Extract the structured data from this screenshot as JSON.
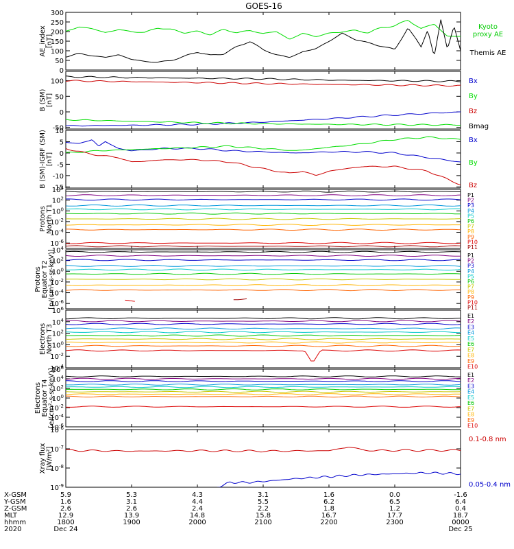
{
  "title": "GOES-16",
  "chart_data": [
    {
      "type": "line",
      "ylabel": [
        "AE_index",
        "[nT]"
      ],
      "yscale": "linear",
      "ylim": [
        0,
        300
      ],
      "yticks": [
        "0",
        "50",
        "100",
        "150",
        "200",
        "250",
        "300"
      ],
      "series": [
        {
          "name": "Kyoto proxy AE",
          "label_lines": [
            "Kyoto",
            "proxy AE"
          ],
          "color": "#00dd00",
          "x": [
            0,
            0.2,
            0.4,
            0.6,
            0.8,
            1.0,
            1.2,
            1.4,
            1.6,
            1.8,
            2.0,
            2.2,
            2.4,
            2.6,
            2.8,
            3.0,
            3.2,
            3.4,
            3.6,
            3.8,
            4.0,
            4.2,
            4.4,
            4.6,
            4.8,
            5.0,
            5.2,
            5.4,
            5.6,
            5.8,
            6.0
          ],
          "y": [
            200,
            225,
            215,
            195,
            210,
            200,
            195,
            220,
            210,
            195,
            200,
            185,
            210,
            195,
            205,
            190,
            200,
            160,
            190,
            175,
            190,
            200,
            205,
            195,
            220,
            230,
            260,
            215,
            240,
            175,
            175
          ]
        },
        {
          "name": "Themis AE",
          "label_lines": [
            "Themis AE"
          ],
          "color": "#000000",
          "x": [
            0,
            0.2,
            0.4,
            0.6,
            0.8,
            1.0,
            1.2,
            1.4,
            1.6,
            1.8,
            2.0,
            2.2,
            2.4,
            2.6,
            2.8,
            3.0,
            3.2,
            3.4,
            3.6,
            3.8,
            4.0,
            4.2,
            4.4,
            4.6,
            4.8,
            5.0,
            5.2,
            5.4,
            5.5,
            5.6,
            5.7,
            5.8,
            5.9,
            6.0
          ],
          "y": [
            70,
            85,
            75,
            65,
            80,
            55,
            45,
            40,
            50,
            70,
            95,
            75,
            85,
            120,
            150,
            105,
            80,
            65,
            95,
            110,
            150,
            190,
            160,
            140,
            125,
            105,
            220,
            120,
            210,
            70,
            260,
            110,
            230,
            100
          ]
        }
      ]
    },
    {
      "type": "line",
      "ylabel": [
        "B (SM)",
        "[nT]"
      ],
      "yscale": "linear",
      "ylim": [
        -55,
        130
      ],
      "yticks": [
        "-50",
        "0",
        "50",
        "100"
      ],
      "series": [
        {
          "name": "Bx",
          "color": "#0000cc",
          "x": [
            0,
            1,
            2,
            3,
            4,
            5,
            6
          ],
          "y": [
            -45,
            -43,
            -40,
            -33,
            -22,
            -10,
            0
          ]
        },
        {
          "name": "By",
          "color": "#00dd00",
          "x": [
            0,
            1,
            2,
            3,
            4,
            5,
            6
          ],
          "y": [
            -25,
            -30,
            -35,
            -38,
            -40,
            -41,
            -42
          ]
        },
        {
          "name": "Bz",
          "color": "#cc0000",
          "x": [
            0,
            1,
            2,
            3,
            4,
            5,
            6
          ],
          "y": [
            100,
            97,
            94,
            91,
            88,
            86,
            84
          ]
        },
        {
          "name": "Bmag",
          "color": "#000000",
          "x": [
            0,
            1,
            2,
            3,
            4,
            5,
            6
          ],
          "y": [
            113,
            110,
            108,
            106,
            102,
            100,
            98
          ]
        }
      ]
    },
    {
      "type": "line",
      "ylabel": [
        "B (SM)-IGRF (SM)",
        "[nT]"
      ],
      "yscale": "linear",
      "ylim": [
        -15.5,
        10
      ],
      "yticks": [
        "-15",
        "-10",
        "-5",
        "0",
        "5",
        "10"
      ],
      "series": [
        {
          "name": "Bx",
          "color": "#0000cc",
          "x": [
            0,
            0.2,
            0.4,
            0.5,
            0.6,
            0.8,
            1.0,
            1.5,
            2.0,
            2.5,
            3.0,
            3.5,
            4.0,
            4.5,
            5.0,
            5.5,
            6.0
          ],
          "y": [
            5,
            4,
            6,
            3,
            5,
            2,
            1,
            2,
            2,
            1,
            0.5,
            0,
            0.5,
            0.5,
            0,
            -2,
            -4
          ]
        },
        {
          "name": "By",
          "color": "#00dd00",
          "x": [
            0,
            0.5,
            1.0,
            1.5,
            2.0,
            2.5,
            3.0,
            3.5,
            4.0,
            4.5,
            5.0,
            5.5,
            6.0
          ],
          "y": [
            0,
            1,
            1.5,
            2,
            2.5,
            3,
            2,
            1,
            2.5,
            4,
            6,
            7,
            6
          ]
        },
        {
          "name": "Bz",
          "color": "#cc0000",
          "x": [
            0,
            0.3,
            0.5,
            0.8,
            1.0,
            1.5,
            2.0,
            2.5,
            3.0,
            3.2,
            3.4,
            3.6,
            3.8,
            4.0,
            4.5,
            5.0,
            5.5,
            6.0
          ],
          "y": [
            2,
            0,
            -1,
            -2,
            -4,
            -3,
            -3,
            -4,
            -7,
            -8,
            -9,
            -8,
            -10,
            -8,
            -6,
            -6,
            -8,
            -14
          ]
        }
      ]
    },
    {
      "type": "line",
      "ylabel": [
        "Protons",
        "North T1"
      ],
      "yscale": "log",
      "ylim": [
        -7,
        4
      ],
      "yticks": [
        "10^4",
        "10^2",
        "10^0",
        "10^-2",
        "10^-4",
        "10^-6"
      ],
      "series": [
        {
          "name": "P1",
          "color": "#000000",
          "log10": 3.6
        },
        {
          "name": "P2",
          "color": "#800080",
          "log10": 2.9
        },
        {
          "name": "P3",
          "color": "#0000cc",
          "log10": 2.1
        },
        {
          "name": "P4",
          "color": "#0096dc",
          "log10": 1.0
        },
        {
          "name": "P5",
          "color": "#00c8c8",
          "log10": 0.3
        },
        {
          "name": "P6",
          "color": "#00c800",
          "log10": -0.5
        },
        {
          "name": "P7",
          "color": "#c8c800",
          "log10": -1.5
        },
        {
          "name": "P8",
          "color": "#ffb400",
          "log10": -2.6
        },
        {
          "name": "P9",
          "color": "#ff6400",
          "log10": -3.5
        },
        {
          "name": "P10",
          "color": "#dc0000",
          "log10": -6.0
        },
        {
          "name": "P11",
          "color": "#a00000",
          "log10": -6.6
        }
      ]
    },
    {
      "type": "line",
      "ylabel": [
        "Protons",
        "Equator T2",
        "[p/(cm²-s-sr-keV)]"
      ],
      "yscale": "log",
      "ylim": [
        -7,
        4
      ],
      "yticks": [
        "10^4",
        "10^2",
        "10^0",
        "10^-2",
        "10^-4",
        "10^-6"
      ],
      "series": [
        {
          "name": "P1",
          "color": "#000000",
          "log10": 3.6
        },
        {
          "name": "P2",
          "color": "#800080",
          "log10": 2.9
        },
        {
          "name": "P3",
          "color": "#0000cc",
          "log10": 2.1
        },
        {
          "name": "P4",
          "color": "#0096dc",
          "log10": 1.0
        },
        {
          "name": "P5",
          "color": "#00c8c8",
          "log10": 0.3
        },
        {
          "name": "P6",
          "color": "#00c800",
          "log10": -0.5
        },
        {
          "name": "P7",
          "color": "#c8c800",
          "log10": -1.5
        },
        {
          "name": "P8",
          "color": "#ffb400",
          "log10": -2.6
        },
        {
          "name": "P9",
          "color": "#ff6400",
          "log10": -3.5
        },
        {
          "name": "P10",
          "color": "#dc0000",
          "log10": -5.5,
          "x_range": [
            0.9,
            1.05
          ]
        },
        {
          "name": "P11",
          "color": "#a00000",
          "log10": -5.2,
          "x_range": [
            2.55,
            2.75
          ]
        }
      ]
    },
    {
      "type": "line",
      "ylabel": [
        "Electrons",
        "North T3"
      ],
      "yscale": "log",
      "ylim": [
        -4,
        6
      ],
      "yticks": [
        "10^6",
        "10^4",
        "10^2",
        "10^0",
        "10^-2",
        "10^-4"
      ],
      "series": [
        {
          "name": "E1",
          "color": "#000000",
          "log10": 4.6
        },
        {
          "name": "E2",
          "color": "#800080",
          "log10": 4.1
        },
        {
          "name": "E3",
          "color": "#0000cc",
          "log10": 3.6
        },
        {
          "name": "E4",
          "color": "#0096dc",
          "log10": 2.8
        },
        {
          "name": "E5",
          "color": "#00c8c8",
          "log10": 2.2
        },
        {
          "name": "E6",
          "color": "#00c800",
          "log10": 1.6
        },
        {
          "name": "E7",
          "color": "#c8c800",
          "log10": 1.0
        },
        {
          "name": "E8",
          "color": "#ffb400",
          "log10": 0.4
        },
        {
          "name": "E9",
          "color": "#ff6400",
          "log10": -0.2
        },
        {
          "name": "E10",
          "color": "#dc0000",
          "log10": -1.0,
          "dip": {
            "x": 3.75,
            "log10": -3.2
          }
        }
      ]
    },
    {
      "type": "line",
      "ylabel": [
        "Electrons",
        "Equator T4",
        "[e/(cm²-s-sr-keV)]"
      ],
      "yscale": "log",
      "ylim": [
        -6,
        6
      ],
      "yticks": [
        "10^6",
        "10^4",
        "10^2",
        "10^0",
        "10^-2",
        "10^-4",
        "10^-6"
      ],
      "series": [
        {
          "name": "E1",
          "color": "#000000",
          "log10": 4.5
        },
        {
          "name": "E2",
          "color": "#800080",
          "log10": 4.0
        },
        {
          "name": "E3",
          "color": "#0000cc",
          "log10": 3.5
        },
        {
          "name": "E4",
          "color": "#0096dc",
          "log10": 2.8
        },
        {
          "name": "E5",
          "color": "#00c8c8",
          "log10": 2.3
        },
        {
          "name": "E6",
          "color": "#00c800",
          "log10": 1.8
        },
        {
          "name": "E7",
          "color": "#c8c800",
          "log10": 1.3
        },
        {
          "name": "E8",
          "color": "#ffb400",
          "log10": 0.8
        },
        {
          "name": "E9",
          "color": "#ff6400",
          "log10": 0.3
        },
        {
          "name": "E10",
          "color": "#dc0000",
          "log10": -1.8
        }
      ]
    },
    {
      "type": "line",
      "ylabel": [
        "Xray flux",
        "[W/m²]"
      ],
      "yscale": "log",
      "ylim": [
        -9,
        -6
      ],
      "yticks": [
        "10^-6",
        "10^-7",
        "10^-8",
        "10^-9"
      ],
      "series": [
        {
          "name": "0.1-0.8 nm",
          "color": "#cc0000",
          "x": [
            0,
            1,
            2,
            3,
            4,
            4.3,
            4.5,
            4.7,
            5,
            6
          ],
          "log10": [
            -7.08,
            -7.12,
            -7.1,
            -7.12,
            -7.1,
            -6.9,
            -7.05,
            -7.1,
            -7.08,
            -7.08
          ]
        },
        {
          "name": "0.05-0.4 nm",
          "color": "#0000cc",
          "x": [
            2.3,
            2.5,
            2.8,
            3.0,
            3.5,
            4.0,
            4.5,
            5.0,
            5.5,
            6.0
          ],
          "log10": [
            -9.0,
            -8.75,
            -8.75,
            -8.7,
            -8.55,
            -8.45,
            -8.35,
            -8.3,
            -8.25,
            -8.3
          ]
        }
      ]
    }
  ],
  "x_axis": {
    "ticks": [
      {
        "xgsm": "5.9",
        "ygsm": "1.6",
        "zgsm": "2.6",
        "mlt": "12.9",
        "hhmm": "1800",
        "date": "Dec 24"
      },
      {
        "xgsm": "5.3",
        "ygsm": "3.1",
        "zgsm": "2.6",
        "mlt": "13.9",
        "hhmm": "1900",
        "date": ""
      },
      {
        "xgsm": "4.3",
        "ygsm": "4.4",
        "zgsm": "2.4",
        "mlt": "14.8",
        "hhmm": "2000",
        "date": ""
      },
      {
        "xgsm": "3.1",
        "ygsm": "5.5",
        "zgsm": "2.2",
        "mlt": "15.8",
        "hhmm": "2100",
        "date": ""
      },
      {
        "xgsm": "1.6",
        "ygsm": "6.2",
        "zgsm": "1.8",
        "mlt": "16.7",
        "hhmm": "2200",
        "date": ""
      },
      {
        "xgsm": "0.0",
        "ygsm": "6.5",
        "zgsm": "1.2",
        "mlt": "17.7",
        "hhmm": "2300",
        "date": ""
      },
      {
        "xgsm": "-1.6",
        "ygsm": "6.4",
        "zgsm": "0.4",
        "mlt": "18.7",
        "hhmm": "0000",
        "date": "Dec 25"
      }
    ],
    "row_labels": [
      "X-GSM",
      "Y-GSM",
      "Z-GSM",
      "MLT",
      "hhmm",
      "2020"
    ]
  }
}
